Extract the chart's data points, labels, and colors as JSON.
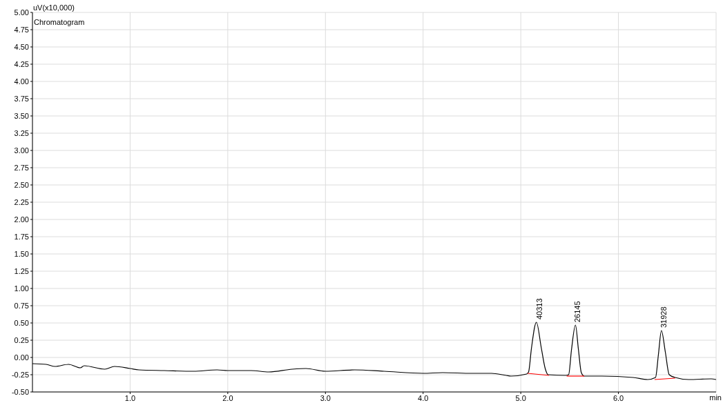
{
  "chart_data": {
    "type": "line",
    "ylabel": "uV(x10,000)",
    "xlabel": "min",
    "annotations": [
      "Chromatogram",
      {
        "text": "40313",
        "x": 5.17,
        "y": 0.51
      },
      {
        "text": "26145",
        "x": 5.56,
        "y": 0.47
      },
      {
        "text": "31928",
        "x": 6.44,
        "y": 0.39
      }
    ],
    "series": [
      {
        "color": "#000000",
        "x": [
          0,
          0.14,
          0.23,
          0.37,
          0.49,
          0.53,
          0.74,
          0.84,
          1.0,
          1.09,
          1.35,
          1.65,
          1.89,
          2.0,
          2.24,
          2.42,
          2.66,
          2.8,
          3.0,
          3.3,
          3.6,
          4.0,
          4.2,
          4.5,
          4.7,
          4.85,
          4.9,
          5.06,
          5.08,
          5.11,
          5.16,
          5.21,
          5.25,
          5.28,
          5.46,
          5.49,
          5.52,
          5.56,
          5.59,
          5.62,
          5.65,
          5.83,
          6.15,
          6.3,
          6.38,
          6.41,
          6.44,
          6.48,
          6.52,
          6.58,
          6.72,
          6.95,
          7.0
        ],
        "values": [
          -0.09,
          -0.1,
          -0.13,
          -0.1,
          -0.15,
          -0.12,
          -0.17,
          -0.13,
          -0.16,
          -0.18,
          -0.19,
          -0.2,
          -0.18,
          -0.19,
          -0.19,
          -0.21,
          -0.17,
          -0.16,
          -0.2,
          -0.18,
          -0.2,
          -0.23,
          -0.22,
          -0.23,
          -0.23,
          -0.26,
          -0.27,
          -0.24,
          -0.21,
          0.14,
          0.51,
          0.14,
          -0.16,
          -0.25,
          -0.26,
          -0.25,
          0.12,
          0.47,
          0.12,
          -0.22,
          -0.27,
          -0.27,
          -0.29,
          -0.32,
          -0.29,
          0.05,
          0.39,
          0.08,
          -0.25,
          -0.29,
          -0.32,
          -0.31,
          -0.32
        ]
      },
      {
        "color": "#ff0000",
        "x": [
          5.07,
          5.29
        ],
        "values": [
          -0.23,
          -0.26
        ]
      },
      {
        "color": "#ff0000",
        "x": [
          5.47,
          5.65
        ],
        "values": [
          -0.27,
          -0.27
        ]
      },
      {
        "color": "#ff0000",
        "x": [
          6.37,
          6.58
        ],
        "values": [
          -0.32,
          -0.3
        ]
      }
    ],
    "xlim": [
      0,
      7
    ],
    "xticks": [
      {
        "value": 1,
        "label": "1.0"
      },
      {
        "value": 2,
        "label": "2.0"
      },
      {
        "value": 3,
        "label": "3.0"
      },
      {
        "value": 4,
        "label": "4.0"
      },
      {
        "value": 5,
        "label": "5.0"
      },
      {
        "value": 6,
        "label": "6.0"
      }
    ],
    "ylim": [
      -0.5,
      5
    ],
    "yticks": [
      {
        "value": -0.5,
        "label": "-0.50"
      },
      {
        "value": -0.25,
        "label": "-0.25"
      },
      {
        "value": 0,
        "label": "0.00"
      },
      {
        "value": 0.25,
        "label": "0.25"
      },
      {
        "value": 0.5,
        "label": "0.50"
      },
      {
        "value": 0.75,
        "label": "0.75"
      },
      {
        "value": 1,
        "label": "1.00"
      },
      {
        "value": 1.25,
        "label": "1.25"
      },
      {
        "value": 1.5,
        "label": "1.50"
      },
      {
        "value": 1.75,
        "label": "1.75"
      },
      {
        "value": 2,
        "label": "2.00"
      },
      {
        "value": 2.25,
        "label": "2.25"
      },
      {
        "value": 2.5,
        "label": "2.50"
      },
      {
        "value": 2.75,
        "label": "2.75"
      },
      {
        "value": 3,
        "label": "3.00"
      },
      {
        "value": 3.25,
        "label": "3.25"
      },
      {
        "value": 3.5,
        "label": "3.50"
      },
      {
        "value": 3.75,
        "label": "3.75"
      },
      {
        "value": 4,
        "label": "4.00"
      },
      {
        "value": 4.25,
        "label": "4.25"
      },
      {
        "value": 4.5,
        "label": "4.50"
      },
      {
        "value": 4.75,
        "label": "4.75"
      },
      {
        "value": 5,
        "label": "5.00"
      }
    ],
    "grid": true,
    "marker": "none",
    "line_style": "solid"
  }
}
